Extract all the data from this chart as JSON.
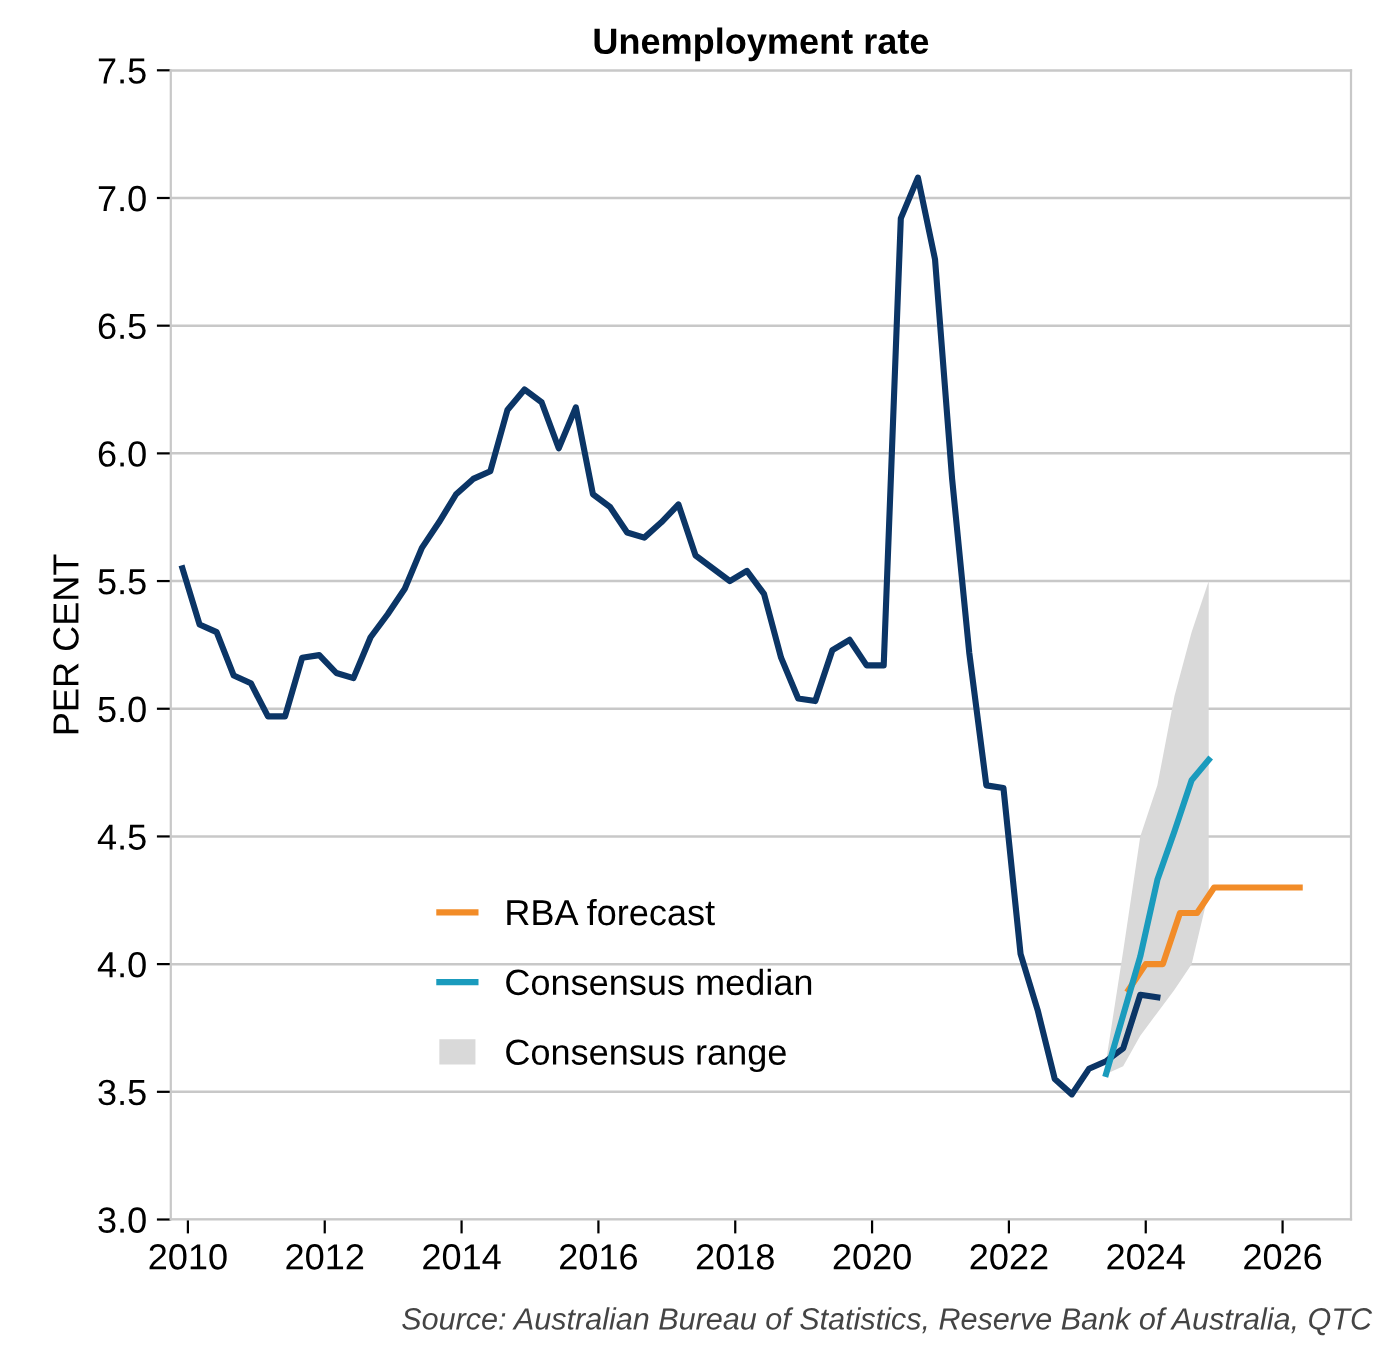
{
  "chart_data": {
    "type": "line",
    "title": "Unemployment rate",
    "ylabel": "PER CENT",
    "annotations": [
      "Source: Australian Bureau of Statistics, Reserve Bank of Australia, QTC"
    ],
    "xlim": [
      2009.75,
      2027
    ],
    "xticks": [
      2010,
      2012,
      2014,
      2016,
      2018,
      2020,
      2022,
      2024,
      2026
    ],
    "ylim": [
      3.0,
      7.5
    ],
    "yticks": [
      {
        "value": 3.0,
        "label": "3.0"
      },
      {
        "value": 3.5,
        "label": "3.5"
      },
      {
        "value": 4.0,
        "label": "4.0"
      },
      {
        "value": 4.5,
        "label": "4.5"
      },
      {
        "value": 5.0,
        "label": "5.0"
      },
      {
        "value": 5.5,
        "label": "5.5"
      },
      {
        "value": 6.0,
        "label": "6.0"
      },
      {
        "value": 6.5,
        "label": "6.5"
      },
      {
        "value": 7.0,
        "label": "7.0"
      },
      {
        "value": 7.5,
        "label": "7.5"
      }
    ],
    "grid": "y",
    "legend": "bottom left",
    "marker": "none",
    "line_style": "solid",
    "series": [
      {
        "type": "area",
        "name": "Consensus range",
        "color": "#d9d9d9",
        "x": [
          2023.42,
          2023.67,
          2023.92,
          2024.17,
          2024.42,
          2024.67,
          2024.92
        ],
        "values": [
          null,
          null,
          null,
          null,
          null,
          null,
          null
        ],
        "lower": [
          3.57,
          3.6,
          3.72,
          3.81,
          3.9,
          4.0,
          4.28
        ],
        "upper": [
          3.62,
          4.05,
          4.5,
          4.7,
          5.05,
          5.3,
          5.5
        ]
      },
      {
        "color": "#0b3566",
        "x": [
          2009.92,
          2010.17,
          2010.42,
          2010.67,
          2010.92,
          2011.17,
          2011.42,
          2011.67,
          2011.92,
          2012.17,
          2012.42,
          2012.67,
          2012.92,
          2013.17,
          2013.42,
          2013.67,
          2013.92,
          2014.17,
          2014.42,
          2014.67,
          2014.92,
          2015.17,
          2015.42,
          2015.67,
          2015.92,
          2016.17,
          2016.42,
          2016.67,
          2016.92,
          2017.17,
          2017.42,
          2017.67,
          2017.92,
          2018.17,
          2018.42,
          2018.67,
          2018.92,
          2019.17,
          2019.42,
          2019.67,
          2019.92,
          2020.17,
          2020.42,
          2020.67,
          2020.92,
          2021.17,
          2021.42,
          2021.67,
          2021.92,
          2022.17,
          2022.42,
          2022.67,
          2022.92,
          2023.17,
          2023.42,
          2023.67,
          2023.92,
          2024.17
        ],
        "values": [
          5.55,
          5.33,
          5.3,
          5.13,
          5.1,
          4.97,
          4.97,
          5.2,
          5.21,
          5.14,
          5.12,
          5.28,
          5.37,
          5.47,
          5.63,
          5.73,
          5.84,
          5.9,
          5.93,
          6.17,
          6.25,
          6.2,
          6.02,
          6.18,
          5.84,
          5.79,
          5.69,
          5.67,
          5.73,
          5.8,
          5.6,
          5.55,
          5.5,
          5.54,
          5.45,
          5.2,
          5.04,
          5.03,
          5.23,
          5.27,
          5.17,
          5.17,
          6.92,
          7.08,
          6.76,
          5.9,
          5.22,
          4.7,
          4.69,
          4.04,
          3.82,
          3.55,
          3.49,
          3.59,
          3.62,
          3.67,
          3.88,
          3.87
        ]
      },
      {
        "name": "RBA forecast",
        "color": "#f28c28",
        "x": [
          2023.75,
          2024.0,
          2024.25,
          2024.5,
          2024.75,
          2025.0,
          2025.25,
          2025.5,
          2025.75,
          2026.0,
          2026.25
        ],
        "values": [
          3.9,
          4.0,
          4.0,
          4.2,
          4.2,
          4.3,
          4.3,
          4.3,
          4.3,
          4.3,
          4.3
        ]
      },
      {
        "name": "Consensus median",
        "color": "#1a9bbd",
        "x": [
          2023.42,
          2023.67,
          2023.92,
          2024.17,
          2024.42,
          2024.67,
          2024.92
        ],
        "values": [
          3.57,
          3.8,
          4.03,
          4.33,
          4.52,
          4.72,
          4.8
        ]
      }
    ]
  }
}
